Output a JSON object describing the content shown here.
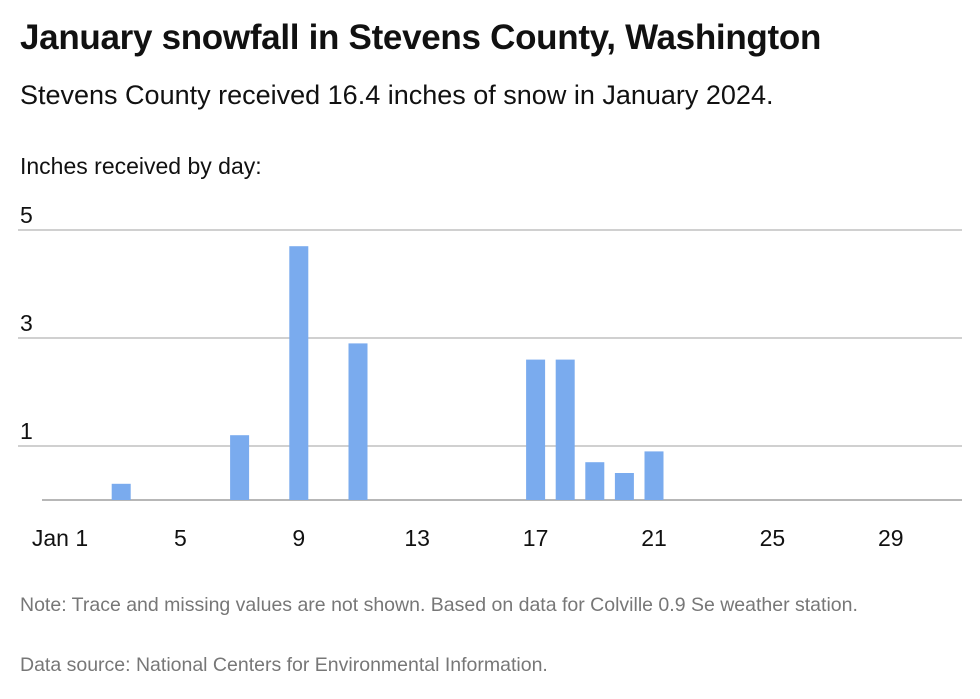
{
  "header": {
    "title": "January snowfall in Stevens County, Washington",
    "subtitle": "Stevens County received 16.4 inches of snow in January 2024.",
    "unit_label": "Inches received by day:"
  },
  "footer": {
    "note": "Note: Trace and missing values are not shown. Based on data for Colville 0.9 Se weather station.",
    "source": "Data source: National Centers for Environmental Information."
  },
  "colors": {
    "bar": "#7aabee",
    "grid": "#b5b5b5",
    "baseline": "#8c8c8c"
  },
  "chart_data": {
    "type": "bar",
    "x": [
      3,
      7,
      9,
      11,
      17,
      18,
      19,
      20,
      21
    ],
    "values": [
      0.3,
      1.2,
      4.7,
      2.9,
      2.6,
      2.6,
      0.7,
      0.5,
      0.9
    ],
    "xlim": [
      1,
      31
    ],
    "ylim": [
      0,
      5
    ],
    "x_ticks": [
      1,
      5,
      9,
      13,
      17,
      21,
      25,
      29
    ],
    "x_tick_labels": [
      "Jan 1",
      "5",
      "9",
      "13",
      "17",
      "21",
      "25",
      "29"
    ],
    "y_ticks": [
      1,
      3,
      5
    ],
    "y_tick_labels": [
      "1",
      "3",
      "5"
    ],
    "ylabel": "Inches received by day:",
    "grid": true,
    "legend": "none"
  }
}
